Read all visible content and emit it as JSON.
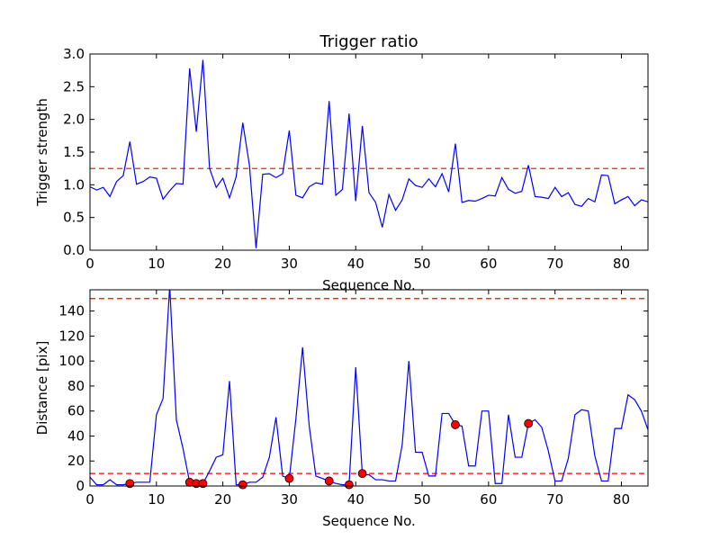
{
  "chart_data": [
    {
      "type": "line",
      "title": "Trigger ratio",
      "xlabel": "Sequence No.",
      "ylabel": "Trigger strength",
      "xlim": [
        0,
        84
      ],
      "ylim": [
        0,
        3.0
      ],
      "xticks": [
        "0",
        "10",
        "20",
        "30",
        "40",
        "50",
        "60",
        "70",
        "80"
      ],
      "yticks": [
        "0.0",
        "0.5",
        "1.0",
        "1.5",
        "2.0",
        "2.5",
        "3.0"
      ],
      "threshold_lines": [
        1.25
      ],
      "line_color": "#0000ff",
      "threshold_color": "#ff0000",
      "series": [
        {
          "x": [
            0,
            1,
            2,
            3,
            4,
            5,
            6,
            7,
            8,
            9,
            10,
            11,
            12,
            13,
            14,
            15,
            16,
            17,
            18,
            19,
            20,
            21,
            22,
            23,
            24,
            25,
            26,
            27,
            28,
            29,
            30,
            31,
            32,
            33,
            34,
            35,
            36,
            37,
            38,
            39,
            40,
            41,
            42,
            43,
            44,
            45,
            46,
            47,
            48,
            49,
            50,
            51,
            52,
            53,
            54,
            55,
            56,
            57,
            58,
            59,
            60,
            61,
            62,
            63,
            64,
            65,
            66,
            67,
            68,
            69,
            70,
            71,
            72,
            73,
            74,
            75,
            76,
            77,
            78,
            79,
            80,
            81,
            82,
            83,
            84
          ],
          "values": [
            0.97,
            0.92,
            0.96,
            0.82,
            1.05,
            1.14,
            1.66,
            1.01,
            1.05,
            1.12,
            1.1,
            0.78,
            0.91,
            1.02,
            1.01,
            2.78,
            1.81,
            2.91,
            1.25,
            0.96,
            1.1,
            0.8,
            1.12,
            1.95,
            1.3,
            0.03,
            1.16,
            1.17,
            1.11,
            1.17,
            1.83,
            0.84,
            0.8,
            0.97,
            1.03,
            1.01,
            2.28,
            0.84,
            0.93,
            2.09,
            0.75,
            1.9,
            0.88,
            0.73,
            0.35,
            0.85,
            0.61,
            0.77,
            1.09,
            0.99,
            0.96,
            1.09,
            0.97,
            1.17,
            0.89,
            1.63,
            0.73,
            0.76,
            0.75,
            0.79,
            0.84,
            0.83,
            1.11,
            0.93,
            0.87,
            0.9,
            1.3,
            0.82,
            0.81,
            0.79,
            0.96,
            0.82,
            0.88,
            0.7,
            0.67,
            0.79,
            0.74,
            1.15,
            1.14,
            0.71,
            0.77,
            0.82,
            0.68,
            0.77,
            0.74
          ]
        }
      ]
    },
    {
      "type": "line",
      "title": "",
      "xlabel": "Sequence No.",
      "ylabel": "Distance [pix]",
      "xlim": [
        0,
        84
      ],
      "ylim": [
        0,
        157
      ],
      "xticks": [
        "0",
        "10",
        "20",
        "30",
        "40",
        "50",
        "60",
        "70",
        "80"
      ],
      "yticks": [
        "0",
        "20",
        "40",
        "60",
        "80",
        "100",
        "120",
        "140"
      ],
      "threshold_lines": [
        10,
        150
      ],
      "line_color": "#0000ff",
      "threshold_color": "#ff0000",
      "marker_color": "#ff0000",
      "series": [
        {
          "x": [
            0,
            1,
            2,
            3,
            4,
            5,
            6,
            7,
            8,
            9,
            10,
            11,
            12,
            13,
            14,
            15,
            16,
            17,
            18,
            19,
            20,
            21,
            22,
            23,
            24,
            25,
            26,
            27,
            28,
            29,
            30,
            31,
            32,
            33,
            34,
            35,
            36,
            37,
            38,
            39,
            40,
            41,
            42,
            43,
            44,
            45,
            46,
            47,
            48,
            49,
            50,
            51,
            52,
            53,
            54,
            55,
            56,
            57,
            58,
            59,
            60,
            61,
            62,
            63,
            64,
            65,
            66,
            67,
            68,
            69,
            70,
            71,
            72,
            73,
            74,
            75,
            76,
            77,
            78,
            79,
            80,
            81,
            82,
            83,
            84
          ],
          "values": [
            7,
            1,
            1,
            5,
            1,
            1,
            2,
            3,
            3,
            3,
            57,
            70,
            160,
            53,
            30,
            3,
            2,
            2,
            12,
            23,
            25,
            84,
            1,
            1,
            3,
            3,
            7,
            23,
            55,
            8,
            6,
            54,
            111,
            48,
            8,
            6,
            4,
            2,
            1,
            1,
            95,
            9,
            9,
            5,
            5,
            4,
            4,
            33,
            100,
            27,
            27,
            8,
            8,
            58,
            58,
            49,
            48,
            16,
            16,
            60,
            60,
            2,
            2,
            57,
            23,
            23,
            50,
            53,
            47,
            28,
            4,
            4,
            22,
            57,
            61,
            60,
            24,
            4,
            4,
            46,
            46,
            73,
            69,
            60,
            45
          ]
        }
      ],
      "markers": {
        "x": [
          6,
          15,
          16,
          17,
          23,
          30,
          36,
          39,
          41,
          55,
          66
        ],
        "values": [
          2,
          3,
          2,
          2,
          1,
          6,
          4,
          1,
          10,
          49,
          50
        ]
      }
    }
  ]
}
